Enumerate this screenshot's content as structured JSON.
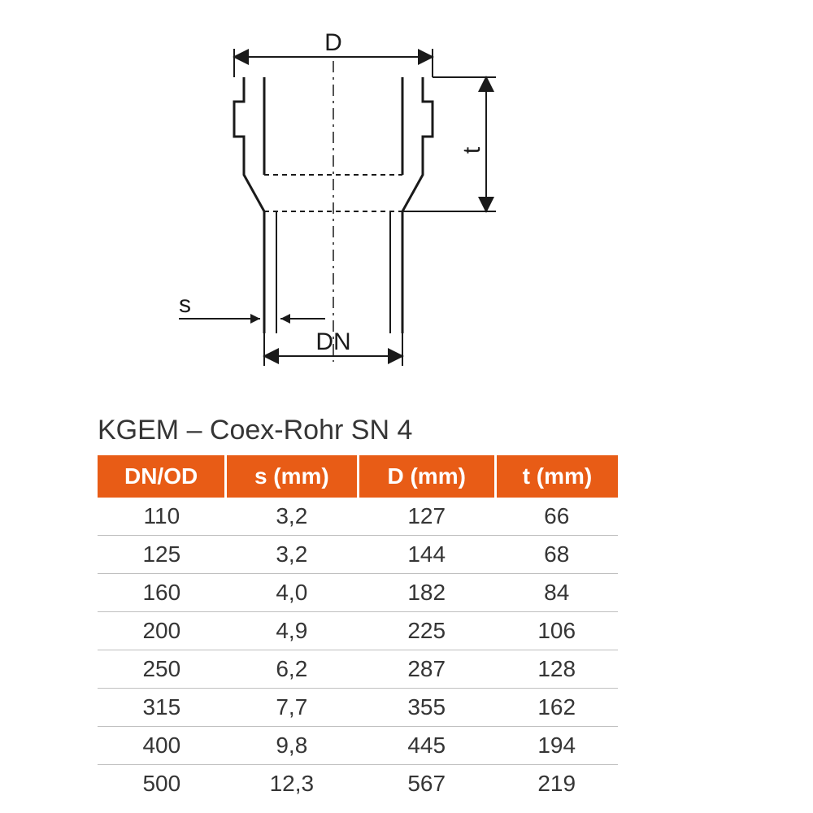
{
  "diagram": {
    "labels": {
      "D": "D",
      "t": "t",
      "s": "s",
      "DN": "DN"
    },
    "stroke_color": "#1a1a1a",
    "stroke_width_main": 3,
    "stroke_width_dim": 2
  },
  "table": {
    "title": "KGEM – Coex-Rohr SN 4",
    "header_bg": "#e85c16",
    "header_fg": "#ffffff",
    "border_color": "#bfbfbf",
    "text_color": "#353535",
    "title_fontsize": 34,
    "header_fontsize": 28,
    "cell_fontsize": 28,
    "columns": [
      "DN/OD",
      "s (mm)",
      "D (mm)",
      "t (mm)"
    ],
    "rows": [
      [
        "110",
        "3,2",
        "127",
        "66"
      ],
      [
        "125",
        "3,2",
        "144",
        "68"
      ],
      [
        "160",
        "4,0",
        "182",
        "84"
      ],
      [
        "200",
        "4,9",
        "225",
        "106"
      ],
      [
        "250",
        "6,2",
        "287",
        "128"
      ],
      [
        "315",
        "7,7",
        "355",
        "162"
      ],
      [
        "400",
        "9,8",
        "445",
        "194"
      ],
      [
        "500",
        "12,3",
        "567",
        "219"
      ]
    ]
  }
}
